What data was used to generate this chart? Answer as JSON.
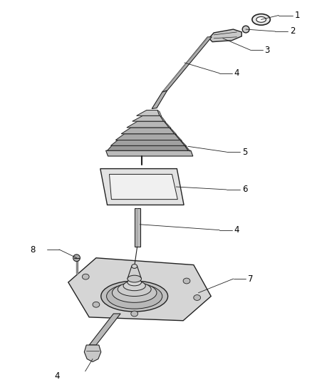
{
  "background_color": "#ffffff",
  "fig_width": 4.38,
  "fig_height": 5.33,
  "dpi": 100,
  "line_color": "#222222",
  "light_gray": "#d0d0d0",
  "mid_gray": "#aaaaaa",
  "dark_gray": "#666666",
  "label_fontsize": 8.5
}
